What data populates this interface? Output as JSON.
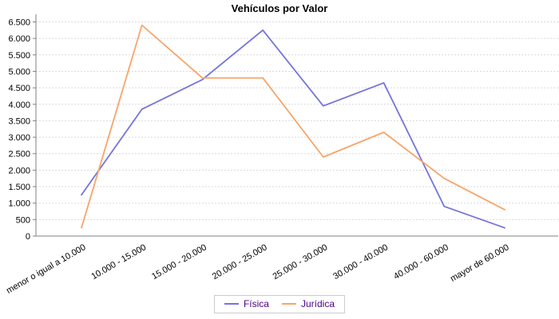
{
  "chart_data": {
    "type": "line",
    "title": "Vehículos por Valor",
    "categories": [
      "menor o igual a 10.000",
      "10.000 - 15.000",
      "15.000 - 20.000",
      "20.000 - 25.000",
      "25.000 - 30.000",
      "30.000 - 40.000",
      "40.000 - 60.000",
      "mayor de 60.000"
    ],
    "series": [
      {
        "name": "Física",
        "color": "#7474DB",
        "values": [
          1250,
          3850,
          4750,
          6250,
          3950,
          4650,
          900,
          250
        ]
      },
      {
        "name": "Jurídica",
        "color": "#F8A46A",
        "values": [
          250,
          6400,
          4800,
          4800,
          2400,
          3150,
          1750,
          800
        ]
      }
    ],
    "ylim": [
      0,
      6500
    ],
    "ytick_step": 500,
    "grid": "horizontal-dashed",
    "legend_position": "bottom-center",
    "colors": {
      "axis": "#808080",
      "gridline": "#D9D9D9",
      "tick_label": "#000000",
      "title": "#000000",
      "legend_text": "#4B0082",
      "legend_border": "#CCCCCC",
      "background": "#FFFFFF"
    }
  }
}
